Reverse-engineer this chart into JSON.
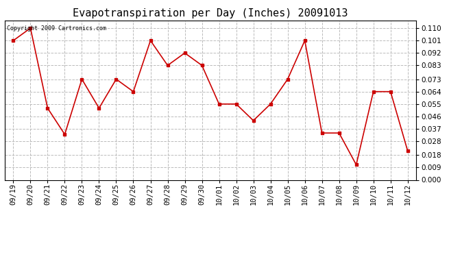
{
  "title": "Evapotranspiration per Day (Inches) 20091013",
  "copyright_text": "Copyright 2009 Cartronics.com",
  "labels": [
    "09/19",
    "09/20",
    "09/21",
    "09/22",
    "09/23",
    "09/24",
    "09/25",
    "09/26",
    "09/27",
    "09/28",
    "09/29",
    "09/30",
    "10/01",
    "10/02",
    "10/03",
    "10/04",
    "10/05",
    "10/06",
    "10/07",
    "10/08",
    "10/09",
    "10/10",
    "10/11",
    "10/12"
  ],
  "values": [
    0.101,
    0.11,
    0.052,
    0.033,
    0.073,
    0.052,
    0.073,
    0.064,
    0.101,
    0.083,
    0.092,
    0.083,
    0.055,
    0.055,
    0.043,
    0.055,
    0.073,
    0.101,
    0.034,
    0.034,
    0.011,
    0.064,
    0.064,
    0.021
  ],
  "line_color": "#cc0000",
  "marker": "s",
  "marker_size": 3,
  "ylim": [
    0.0,
    0.1155
  ],
  "yticks": [
    0.0,
    0.009,
    0.018,
    0.028,
    0.037,
    0.046,
    0.055,
    0.064,
    0.073,
    0.083,
    0.092,
    0.101,
    0.11
  ],
  "background_color": "#ffffff",
  "grid_color": "#bbbbbb",
  "title_fontsize": 11,
  "copyright_fontsize": 6,
  "tick_fontsize": 7.5
}
